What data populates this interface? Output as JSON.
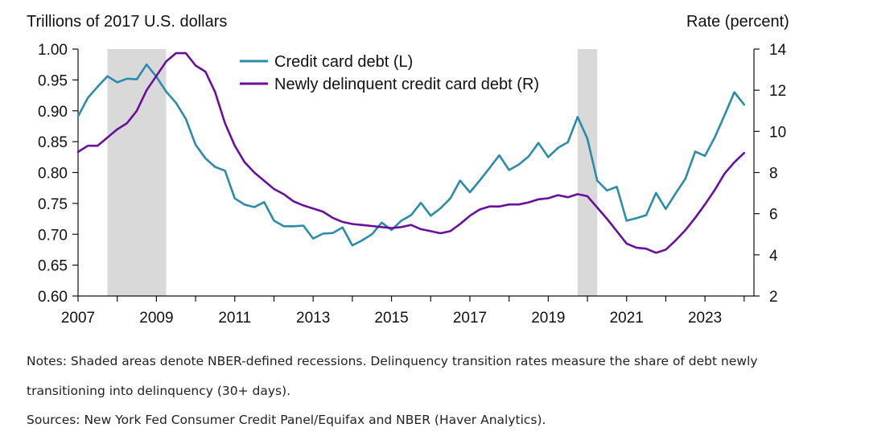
{
  "chart_data": {
    "type": "line",
    "left_axis_title": "Trillions of 2017 U.S. dollars",
    "right_axis_title": "Rate (percent)",
    "x_ticks": [
      "2007",
      "2009",
      "2011",
      "2013",
      "2015",
      "2017",
      "2019",
      "2021",
      "2023"
    ],
    "x_range": [
      2007,
      2024.25
    ],
    "y_left": {
      "range": [
        0.6,
        1.0
      ],
      "ticks": [
        "0.60",
        "0.65",
        "0.70",
        "0.75",
        "0.80",
        "0.85",
        "0.90",
        "0.95",
        "1.00"
      ]
    },
    "y_right": {
      "range": [
        2,
        14
      ],
      "ticks": [
        "2",
        "4",
        "6",
        "8",
        "10",
        "12",
        "14"
      ]
    },
    "recessions": [
      [
        2007.75,
        2009.25
      ],
      [
        2019.75,
        2020.25
      ]
    ],
    "recession_color": "#d9d9d9",
    "legend_position": "top-center",
    "series": [
      {
        "name": "Credit card debt (L)",
        "axis": "left",
        "color": "#2a8bab",
        "x": [
          2007.0,
          2007.25,
          2007.5,
          2007.75,
          2008.0,
          2008.25,
          2008.5,
          2008.75,
          2009.0,
          2009.25,
          2009.5,
          2009.75,
          2010.0,
          2010.25,
          2010.5,
          2010.75,
          2011.0,
          2011.25,
          2011.5,
          2011.75,
          2012.0,
          2012.25,
          2012.5,
          2012.75,
          2013.0,
          2013.25,
          2013.5,
          2013.75,
          2014.0,
          2014.25,
          2014.5,
          2014.75,
          2015.0,
          2015.25,
          2015.5,
          2015.75,
          2016.0,
          2016.25,
          2016.5,
          2016.75,
          2017.0,
          2017.25,
          2017.5,
          2017.75,
          2018.0,
          2018.25,
          2018.5,
          2018.75,
          2019.0,
          2019.25,
          2019.5,
          2019.75,
          2020.0,
          2020.25,
          2020.5,
          2020.75,
          2021.0,
          2021.25,
          2021.5,
          2021.75,
          2022.0,
          2022.25,
          2022.5,
          2022.75,
          2023.0,
          2023.25,
          2023.5,
          2023.75,
          2024.0
        ],
        "values": [
          0.891,
          0.921,
          0.939,
          0.956,
          0.946,
          0.952,
          0.951,
          0.975,
          0.955,
          0.931,
          0.913,
          0.887,
          0.845,
          0.823,
          0.809,
          0.803,
          0.758,
          0.748,
          0.744,
          0.752,
          0.722,
          0.713,
          0.713,
          0.714,
          0.693,
          0.701,
          0.702,
          0.711,
          0.682,
          0.69,
          0.7,
          0.719,
          0.707,
          0.722,
          0.731,
          0.751,
          0.73,
          0.742,
          0.758,
          0.787,
          0.768,
          0.787,
          0.807,
          0.828,
          0.804,
          0.813,
          0.826,
          0.848,
          0.825,
          0.84,
          0.849,
          0.89,
          0.855,
          0.787,
          0.771,
          0.777,
          0.722,
          0.726,
          0.731,
          0.767,
          0.741,
          0.766,
          0.79,
          0.834,
          0.827,
          0.857,
          0.893,
          0.93,
          0.91
        ]
      },
      {
        "name": "Newly delinquent credit card debt (R)",
        "axis": "right",
        "color": "#6a0f9c",
        "x": [
          2007.0,
          2007.25,
          2007.5,
          2007.75,
          2008.0,
          2008.25,
          2008.5,
          2008.75,
          2009.0,
          2009.25,
          2009.5,
          2009.75,
          2010.0,
          2010.25,
          2010.5,
          2010.75,
          2011.0,
          2011.25,
          2011.5,
          2011.75,
          2012.0,
          2012.25,
          2012.5,
          2012.75,
          2013.0,
          2013.25,
          2013.5,
          2013.75,
          2014.0,
          2014.25,
          2014.5,
          2014.75,
          2015.0,
          2015.25,
          2015.5,
          2015.75,
          2016.0,
          2016.25,
          2016.5,
          2016.75,
          2017.0,
          2017.25,
          2017.5,
          2017.75,
          2018.0,
          2018.25,
          2018.5,
          2018.75,
          2019.0,
          2019.25,
          2019.5,
          2019.75,
          2020.0,
          2020.25,
          2020.5,
          2020.75,
          2021.0,
          2021.25,
          2021.5,
          2021.75,
          2022.0,
          2022.25,
          2022.5,
          2022.75,
          2023.0,
          2023.25,
          2023.5,
          2023.75,
          2024.0
        ],
        "values": [
          9.0,
          9.3,
          9.3,
          9.7,
          10.1,
          10.4,
          11.0,
          12.0,
          12.7,
          13.4,
          13.8,
          13.8,
          13.2,
          12.9,
          11.9,
          10.4,
          9.3,
          8.5,
          8.0,
          7.6,
          7.2,
          6.95,
          6.6,
          6.4,
          6.25,
          6.1,
          5.8,
          5.6,
          5.5,
          5.45,
          5.4,
          5.35,
          5.3,
          5.35,
          5.45,
          5.25,
          5.15,
          5.05,
          5.15,
          5.5,
          5.9,
          6.2,
          6.35,
          6.35,
          6.45,
          6.45,
          6.55,
          6.7,
          6.75,
          6.9,
          6.8,
          6.95,
          6.85,
          6.3,
          5.75,
          5.15,
          4.55,
          4.35,
          4.3,
          4.1,
          4.25,
          4.7,
          5.2,
          5.8,
          6.45,
          7.15,
          7.95,
          8.5,
          8.95
        ]
      }
    ]
  },
  "notes": {
    "line1": "Notes: Shaded areas denote NBER-defined recessions. Delinquency transition rates measure the share of debt newly",
    "line2": "transitioning into delinquency (30+ days).",
    "line3": "Sources: New York Fed Consumer Credit Panel/Equifax and NBER (Haver Analytics)."
  }
}
